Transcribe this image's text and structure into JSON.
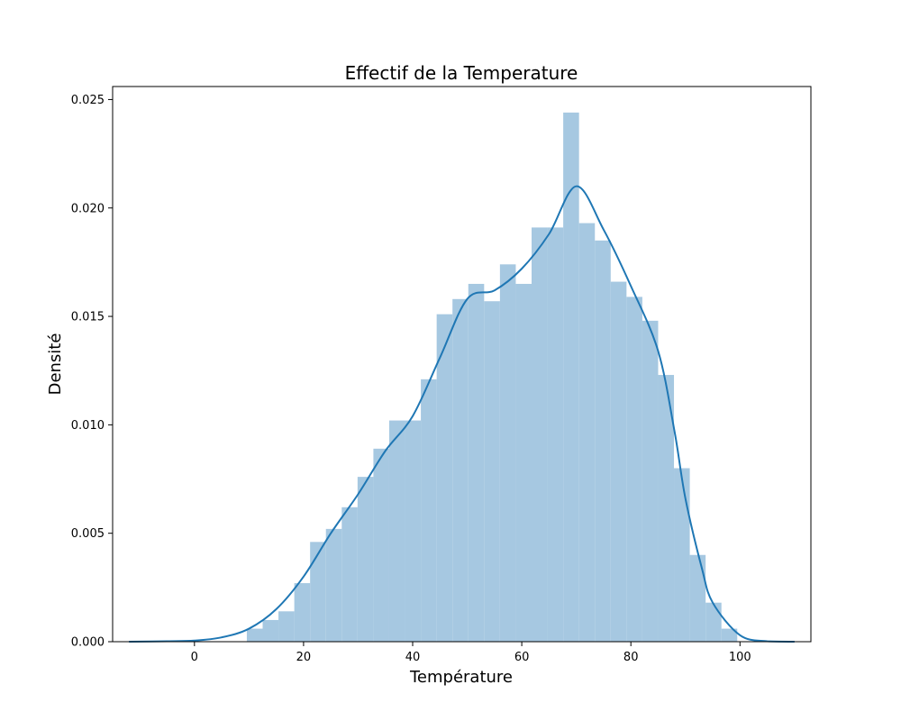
{
  "chart_data": {
    "type": "bar",
    "title": "Effectif de la Temperature",
    "xlabel": "Température",
    "ylabel": "Densité",
    "xlim": [
      -15,
      113
    ],
    "ylim": [
      0,
      0.0256
    ],
    "xticks": [
      0,
      20,
      40,
      60,
      80,
      100
    ],
    "xtick_labels": [
      "0",
      "20",
      "40",
      "60",
      "80",
      "100"
    ],
    "yticks": [
      0,
      0.005,
      0.01,
      0.015,
      0.02,
      0.025
    ],
    "ytick_labels": [
      "0.000",
      "0.005",
      "0.010",
      "0.015",
      "0.020",
      "0.025"
    ],
    "grid": false,
    "legend": "none",
    "bin_width": 2.9,
    "histogram": {
      "bin_edges": [
        9.6,
        12.5,
        15.4,
        18.3,
        21.2,
        24.1,
        27.0,
        29.9,
        32.8,
        35.7,
        38.6,
        41.5,
        44.4,
        47.3,
        50.2,
        53.1,
        56.0,
        58.9,
        61.8,
        64.7,
        67.6,
        70.5,
        73.4,
        76.3,
        79.2,
        82.1,
        85.0,
        87.9,
        90.8,
        93.7,
        96.6,
        99.5
      ],
      "densities": [
        0.0006,
        0.001,
        0.0014,
        0.0027,
        0.0046,
        0.0052,
        0.0062,
        0.0076,
        0.0089,
        0.0102,
        0.0102,
        0.0121,
        0.0151,
        0.0158,
        0.0165,
        0.0157,
        0.0174,
        0.0165,
        0.0191,
        0.0191,
        0.0244,
        0.0193,
        0.0185,
        0.0166,
        0.0159,
        0.0148,
        0.0123,
        0.008,
        0.004,
        0.0018,
        0.0006
      ]
    },
    "kde": {
      "x": [
        -12,
        -5,
        0,
        5,
        10,
        15,
        20,
        25,
        30,
        35,
        40,
        45,
        50,
        55,
        60,
        65,
        70,
        75,
        80,
        85,
        88,
        90,
        93,
        95,
        100,
        105,
        110
      ],
      "y": [
        0.0,
        2e-05,
        5e-05,
        0.0002,
        0.0006,
        0.0015,
        0.003,
        0.005,
        0.0068,
        0.0088,
        0.0104,
        0.0131,
        0.0158,
        0.0162,
        0.0172,
        0.0188,
        0.021,
        0.019,
        0.0164,
        0.0134,
        0.0097,
        0.0066,
        0.0034,
        0.0018,
        0.0003,
        2e-05,
        0.0
      ]
    },
    "colors": {
      "bars": "#a6c8e1",
      "kde_line": "#1f77b4",
      "axes": "#000000"
    }
  }
}
